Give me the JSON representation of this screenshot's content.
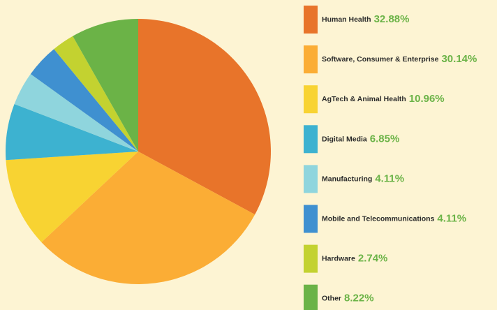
{
  "chart_data": {
    "type": "pie",
    "categories": [
      "Human Health",
      "Software, Consumer & Enterprise",
      "AgTech & Animal Health",
      "Digital Media",
      "Manufacturing",
      "Mobile and Telecommunications",
      "Hardware",
      "Other"
    ],
    "values": [
      32.88,
      30.14,
      10.96,
      6.85,
      4.11,
      4.11,
      2.74,
      8.22
    ],
    "value_labels": [
      "32.88%",
      "30.14%",
      "10.96%",
      "6.85%",
      "4.11%",
      "4.11%",
      "2.74%",
      "8.22%"
    ],
    "colors": [
      "#e8742a",
      "#fbad35",
      "#f8d332",
      "#3db2d0",
      "#8fd5dd",
      "#3f90d0",
      "#c3d230",
      "#6bb347"
    ],
    "legend": "right"
  }
}
